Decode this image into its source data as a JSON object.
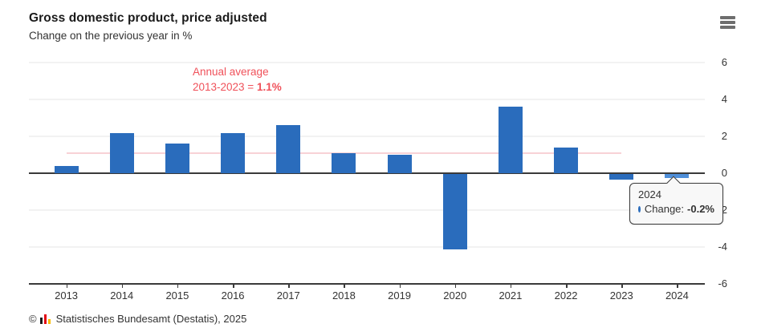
{
  "header": {
    "title": "Gross domestic product, price adjusted",
    "subtitle": "Change on the previous year in %"
  },
  "menu": {
    "icon": "hamburger-icon"
  },
  "annotation": {
    "line1": "Annual average",
    "line2_prefix": "2013-2023 = ",
    "line2_value": "1.1%",
    "color": "#f0515a"
  },
  "chart_data": {
    "type": "bar",
    "title": "Gross domestic product, price adjusted",
    "subtitle": "Change on the previous year in %",
    "categories": [
      "2013",
      "2014",
      "2015",
      "2016",
      "2017",
      "2018",
      "2019",
      "2020",
      "2021",
      "2022",
      "2023",
      "2024"
    ],
    "series": [
      {
        "name": "Change",
        "values": [
          0.4,
          2.2,
          1.6,
          2.2,
          2.6,
          1.1,
          1.0,
          -4.1,
          3.6,
          1.4,
          -0.3,
          -0.2
        ]
      }
    ],
    "yticks": [
      6,
      4,
      2,
      0,
      -2,
      -4,
      -6
    ],
    "ylim": [
      -6,
      6
    ],
    "grid": true,
    "axis_side": "right",
    "bar_color": "#2a6cbc",
    "hover_index": 11,
    "hover_color": "#4f8fd9",
    "average_line": {
      "label": "Annual average 2013-2023",
      "value": 1.1,
      "from_category": "2013",
      "to_category": "2023",
      "color": "#f8d2d6"
    }
  },
  "tooltip": {
    "year": "2024",
    "label": "Change:",
    "value": "-0.2%",
    "dot_color": "#2a6cbc"
  },
  "footer": {
    "copyright": "©",
    "logo_colors": {
      "black": "#1a1a1a",
      "red": "#e30613",
      "yellow": "#f8bb00"
    },
    "text": "Statistisches Bundesamt (Destatis), 2025"
  }
}
